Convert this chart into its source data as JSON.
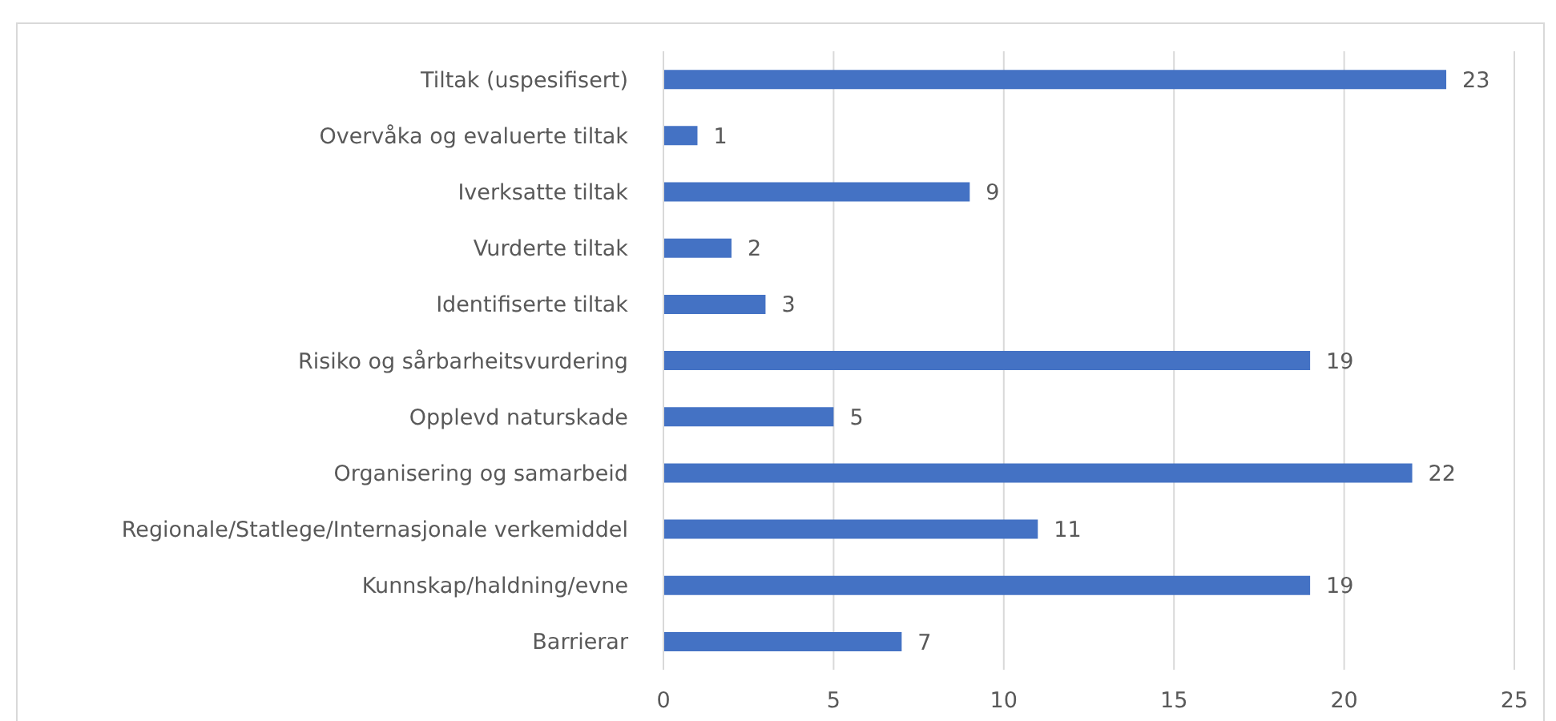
{
  "chart_data": {
    "type": "bar",
    "orientation": "horizontal",
    "categories": [
      "Tiltak (uspesifisert)",
      "Overvåka og evaluerte tiltak",
      "Iverksatte tiltak",
      "Vurderte tiltak",
      "Identifiserte tiltak",
      "Risiko og sårbarheitsvurdering",
      "Opplevd naturskade",
      "Organisering og samarbeid",
      "Regionale/Statlege/Internasjonale verkemiddel",
      "Kunnskap/haldning/evne",
      "Barrierar"
    ],
    "values": [
      23,
      1,
      9,
      2,
      3,
      19,
      5,
      22,
      11,
      19,
      7
    ],
    "color": "#4472c4",
    "xlim": [
      0,
      25
    ],
    "xticks": [
      0,
      5,
      10,
      15,
      20,
      25
    ],
    "grid": "x",
    "data_labels": true
  }
}
